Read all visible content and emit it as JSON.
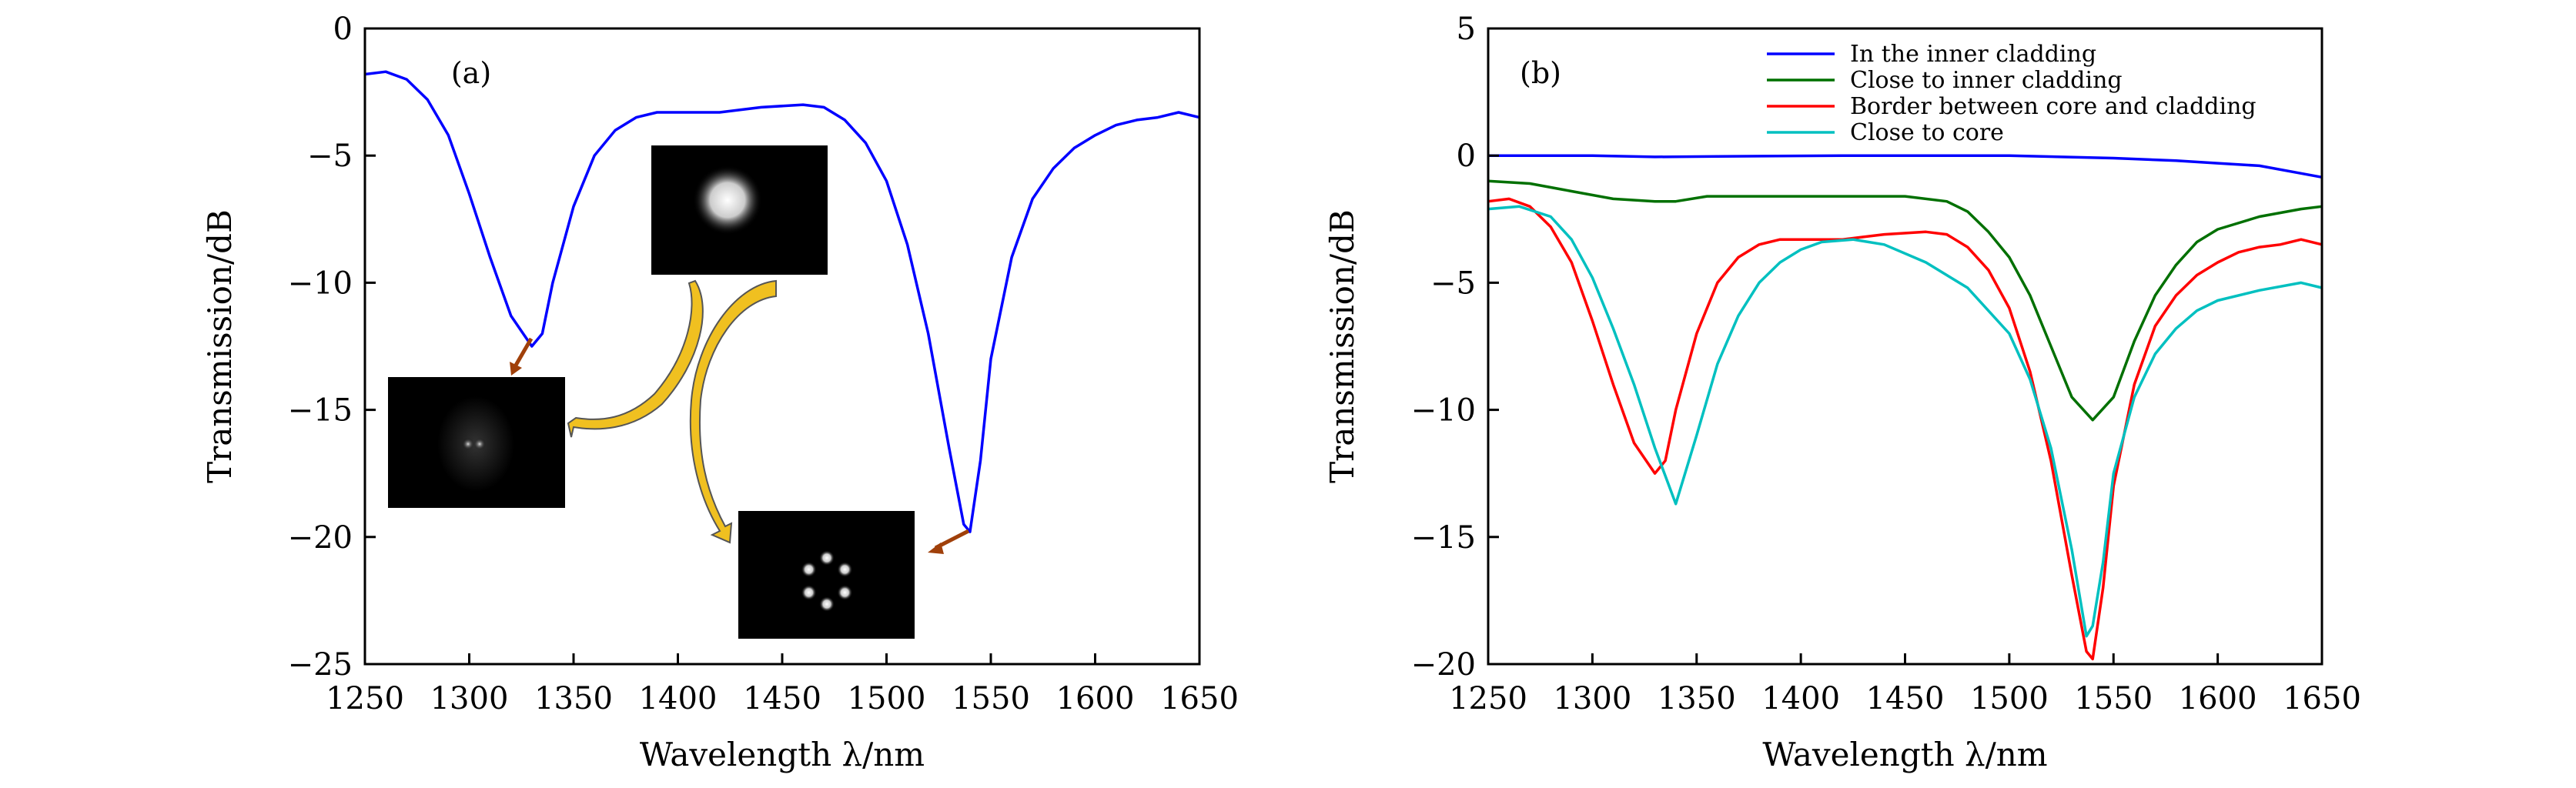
{
  "chart_data": [
    {
      "type": "line",
      "panel_label": "(a)",
      "xlabel": "Wavelength λ/nm",
      "ylabel": "Transmission/dB",
      "xlim": [
        1250,
        1650
      ],
      "ylim": [
        -25,
        0
      ],
      "xticks": [
        1250,
        1300,
        1350,
        1400,
        1450,
        1500,
        1550,
        1600,
        1650
      ],
      "yticks": [
        0,
        -5,
        -10,
        -15,
        -20,
        -25
      ],
      "grid": false,
      "insets": [
        "fundamental mode image",
        "two-lobe mode image",
        "six-lobe ring mode image"
      ],
      "series": [
        {
          "name": "Transmission",
          "color": "#0000ff",
          "x": [
            1250,
            1260,
            1270,
            1280,
            1290,
            1300,
            1310,
            1320,
            1330,
            1335,
            1340,
            1350,
            1360,
            1370,
            1380,
            1390,
            1400,
            1420,
            1440,
            1460,
            1470,
            1480,
            1490,
            1500,
            1510,
            1520,
            1530,
            1537,
            1540,
            1545,
            1550,
            1560,
            1570,
            1580,
            1590,
            1600,
            1610,
            1620,
            1630,
            1640,
            1650
          ],
          "y": [
            -1.8,
            -1.7,
            -2.0,
            -2.8,
            -4.2,
            -6.5,
            -9.0,
            -11.3,
            -12.5,
            -12.0,
            -10.0,
            -7.0,
            -5.0,
            -4.0,
            -3.5,
            -3.3,
            -3.3,
            -3.3,
            -3.1,
            -3.0,
            -3.1,
            -3.6,
            -4.5,
            -6.0,
            -8.5,
            -12.0,
            -16.5,
            -19.5,
            -19.8,
            -17.0,
            -13.0,
            -9.0,
            -6.7,
            -5.5,
            -4.7,
            -4.2,
            -3.8,
            -3.6,
            -3.5,
            -3.3,
            -3.5
          ]
        }
      ]
    },
    {
      "type": "line",
      "panel_label": "(b)",
      "xlabel": "Wavelength λ/nm",
      "ylabel": "Transmission/dB",
      "xlim": [
        1250,
        1650
      ],
      "ylim": [
        -20,
        5
      ],
      "xticks": [
        1250,
        1300,
        1350,
        1400,
        1450,
        1500,
        1550,
        1600,
        1650
      ],
      "yticks": [
        5,
        0,
        -5,
        -10,
        -15,
        -20
      ],
      "grid": false,
      "legend_position": "top-right",
      "series": [
        {
          "name": "In the inner cladding",
          "color": "#0000ff",
          "x": [
            1250,
            1300,
            1330,
            1360,
            1420,
            1500,
            1550,
            1580,
            1600,
            1620,
            1640,
            1650
          ],
          "y": [
            0,
            0,
            -0.05,
            -0.03,
            0,
            0,
            -0.1,
            -0.2,
            -0.3,
            -0.4,
            -0.7,
            -0.85
          ]
        },
        {
          "name": "Close to inner cladding",
          "color": "#007000",
          "x": [
            1250,
            1270,
            1290,
            1310,
            1330,
            1340,
            1355,
            1400,
            1450,
            1470,
            1480,
            1490,
            1500,
            1510,
            1520,
            1530,
            1540,
            1550,
            1560,
            1570,
            1580,
            1590,
            1600,
            1620,
            1640,
            1650
          ],
          "y": [
            -1.0,
            -1.1,
            -1.4,
            -1.7,
            -1.8,
            -1.8,
            -1.6,
            -1.6,
            -1.6,
            -1.8,
            -2.2,
            -3.0,
            -4.0,
            -5.5,
            -7.5,
            -9.5,
            -10.4,
            -9.5,
            -7.3,
            -5.5,
            -4.3,
            -3.4,
            -2.9,
            -2.4,
            -2.1,
            -2.0
          ]
        },
        {
          "name": "Border between core and cladding",
          "color": "#ff0000",
          "x": [
            1250,
            1260,
            1270,
            1280,
            1290,
            1300,
            1310,
            1320,
            1330,
            1335,
            1340,
            1350,
            1360,
            1370,
            1380,
            1390,
            1400,
            1420,
            1440,
            1460,
            1470,
            1480,
            1490,
            1500,
            1510,
            1520,
            1530,
            1537,
            1540,
            1545,
            1550,
            1560,
            1570,
            1580,
            1590,
            1600,
            1610,
            1620,
            1630,
            1640,
            1650
          ],
          "y": [
            -1.8,
            -1.7,
            -2.0,
            -2.8,
            -4.2,
            -6.5,
            -9.0,
            -11.3,
            -12.5,
            -12.0,
            -10.0,
            -7.0,
            -5.0,
            -4.0,
            -3.5,
            -3.3,
            -3.3,
            -3.3,
            -3.1,
            -3.0,
            -3.1,
            -3.6,
            -4.5,
            -6.0,
            -8.5,
            -12.0,
            -16.5,
            -19.5,
            -19.8,
            -17.0,
            -13.0,
            -9.0,
            -6.7,
            -5.5,
            -4.7,
            -4.2,
            -3.8,
            -3.6,
            -3.5,
            -3.3,
            -3.5
          ]
        },
        {
          "name": "Close to core",
          "color": "#00c0c0",
          "x": [
            1250,
            1265,
            1280,
            1290,
            1300,
            1310,
            1320,
            1330,
            1340,
            1350,
            1360,
            1370,
            1380,
            1390,
            1400,
            1410,
            1425,
            1440,
            1460,
            1480,
            1500,
            1510,
            1520,
            1530,
            1537,
            1540,
            1545,
            1550,
            1560,
            1570,
            1580,
            1590,
            1600,
            1620,
            1640,
            1650
          ],
          "y": [
            -2.1,
            -2.0,
            -2.4,
            -3.3,
            -4.8,
            -6.8,
            -9.0,
            -11.5,
            -13.7,
            -11.0,
            -8.2,
            -6.3,
            -5.0,
            -4.2,
            -3.7,
            -3.4,
            -3.3,
            -3.5,
            -4.2,
            -5.2,
            -7.0,
            -8.8,
            -11.5,
            -15.5,
            -18.9,
            -18.5,
            -16.0,
            -12.5,
            -9.5,
            -7.8,
            -6.8,
            -6.1,
            -5.7,
            -5.3,
            -5.0,
            -5.2
          ]
        }
      ]
    }
  ]
}
